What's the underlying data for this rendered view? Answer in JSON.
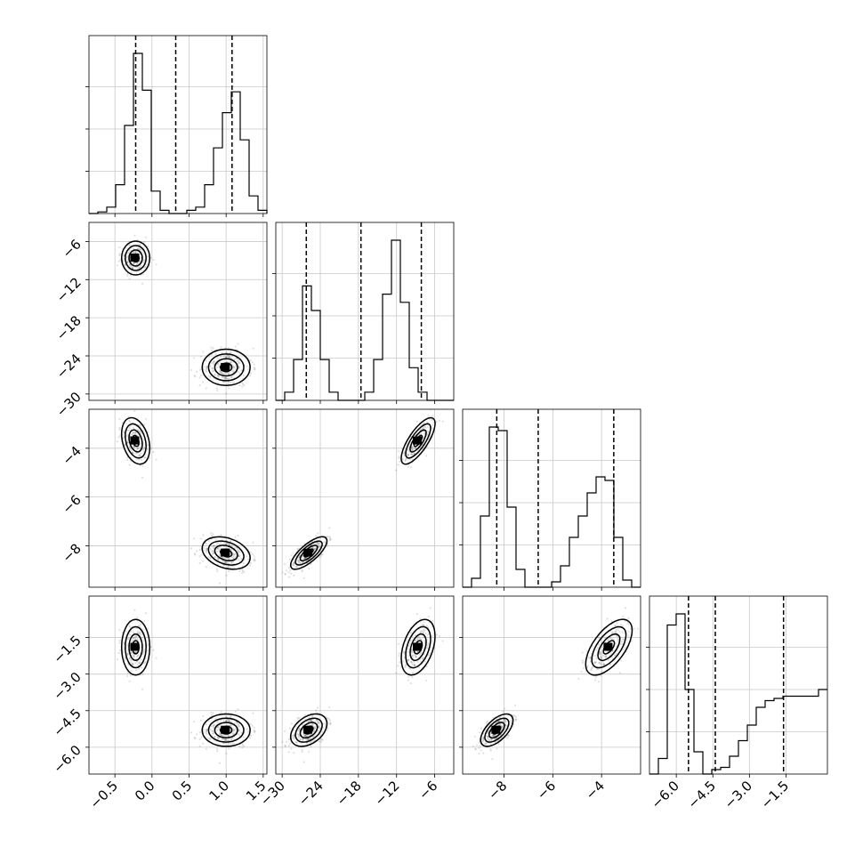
{
  "chart_data": {
    "type": "corner",
    "title": "",
    "parameter_labels": [
      "",
      "",
      "",
      ""
    ],
    "grid": true,
    "ranges": [
      [
        -0.85,
        1.55
      ],
      [
        -31,
        -3
      ],
      [
        -9.7,
        -2.4
      ],
      [
        -7.1,
        0.2
      ]
    ],
    "ticks": [
      [
        {
          "v": -0.5,
          "t": "−0.5"
        },
        {
          "v": 0.0,
          "t": "0.0"
        },
        {
          "v": 0.5,
          "t": "0.5"
        },
        {
          "v": 1.0,
          "t": "1.0"
        },
        {
          "v": 1.5,
          "t": "1.5"
        }
      ],
      [
        {
          "v": -30,
          "t": "−30"
        },
        {
          "v": -24,
          "t": "−24"
        },
        {
          "v": -18,
          "t": "−18"
        },
        {
          "v": -12,
          "t": "−12"
        },
        {
          "v": -6,
          "t": "−6"
        }
      ],
      [
        {
          "v": -8,
          "t": "−8"
        },
        {
          "v": -6,
          "t": "−6"
        },
        {
          "v": -4,
          "t": "−4"
        }
      ],
      [
        {
          "v": -6.0,
          "t": "−6.0"
        },
        {
          "v": -4.5,
          "t": "−4.5"
        },
        {
          "v": -3.0,
          "t": "−3.0"
        },
        {
          "v": -1.5,
          "t": "−1.5"
        }
      ]
    ],
    "quantiles": [
      [
        -0.22,
        0.32,
        1.08
      ],
      [
        -26.2,
        -17.6,
        -8.1
      ],
      [
        -8.3,
        -6.6,
        -3.5
      ],
      [
        -5.5,
        -4.4,
        -1.6
      ]
    ],
    "histograms": [
      {
        "start": -0.85,
        "width": 0.12,
        "counts": [
          0,
          1,
          4,
          18,
          55,
          100,
          77,
          14,
          2,
          0,
          0,
          2,
          4,
          18,
          41,
          63,
          76,
          46,
          11,
          2,
          0
        ]
      },
      {
        "start": -31,
        "width": 1.4,
        "counts": [
          0,
          5,
          25,
          70,
          55,
          25,
          5,
          0,
          0,
          0,
          5,
          25,
          65,
          98,
          60,
          20,
          5,
          0,
          0,
          0
        ]
      },
      {
        "start": -9.7,
        "width": 0.365,
        "counts": [
          0,
          5,
          40,
          90,
          88,
          45,
          10,
          0,
          0,
          0,
          3,
          12,
          28,
          40,
          53,
          62,
          60,
          28,
          4,
          0
        ]
      },
      {
        "start": -7.1,
        "width": 0.365,
        "counts": [
          0,
          7,
          67,
          72,
          38,
          10,
          0,
          2,
          3,
          8,
          15,
          22,
          30,
          33,
          34,
          35,
          35,
          35,
          35,
          38
        ]
      }
    ],
    "modes": [
      {
        "w": 0.5,
        "mean": [
          -0.22,
          -8.6,
          -3.7,
          -1.9
        ],
        "sd": [
          0.1,
          1.4,
          0.5,
          0.6
        ]
      },
      {
        "w": 0.5,
        "mean": [
          1.0,
          -25.8,
          -8.3,
          -5.3
        ],
        "sd": [
          0.17,
          1.5,
          0.35,
          0.35
        ]
      }
    ],
    "correlations": [
      [
        0,
        1,
        0.0
      ],
      [
        0,
        2,
        -0.3
      ],
      [
        0,
        3,
        0.0
      ],
      [
        1,
        2,
        0.75
      ],
      [
        1,
        3,
        0.4
      ],
      [
        2,
        3,
        0.6
      ]
    ]
  }
}
